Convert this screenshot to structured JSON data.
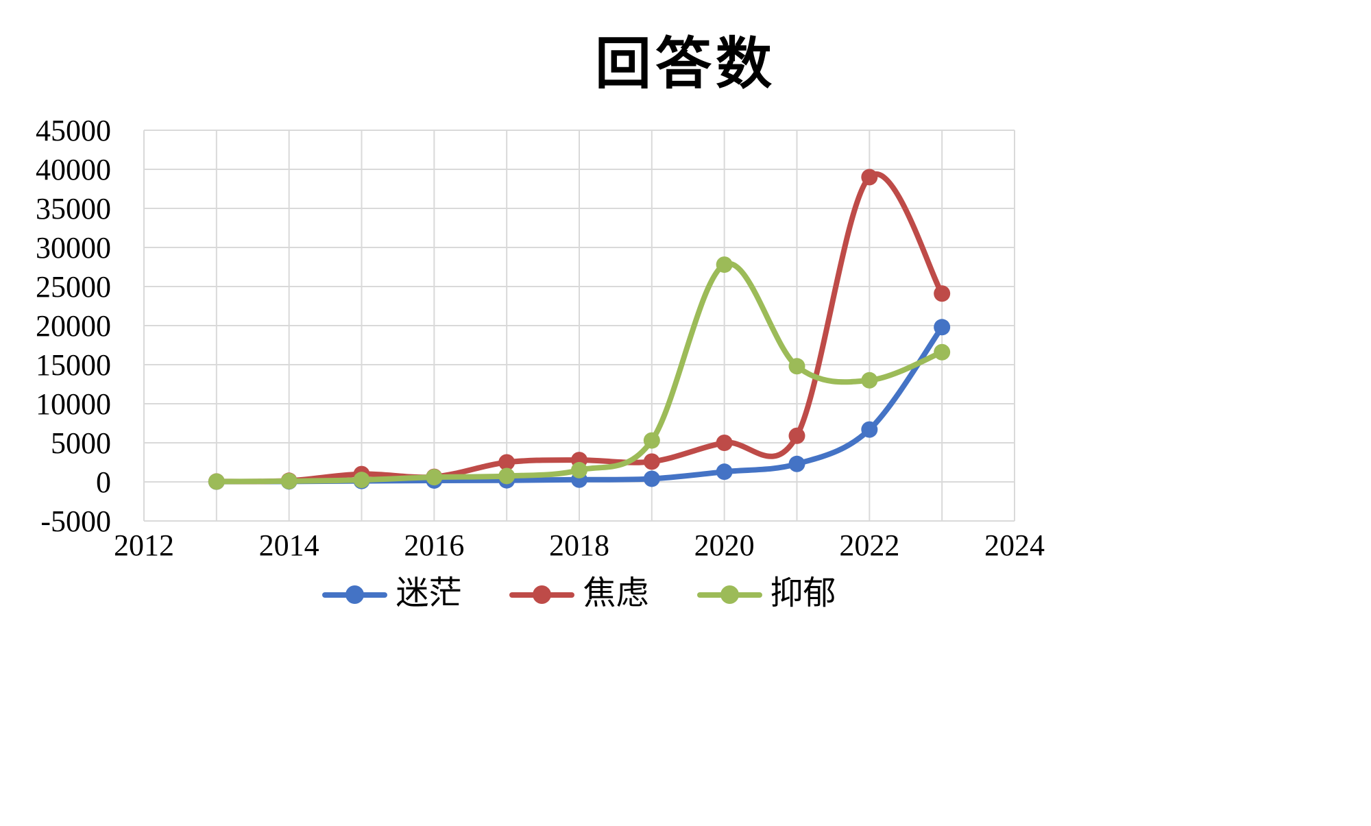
{
  "chart_data": {
    "type": "line",
    "title": "回答数",
    "xlabel": "",
    "ylabel": "",
    "x": [
      2013,
      2014,
      2015,
      2016,
      2017,
      2018,
      2019,
      2020,
      2021,
      2022,
      2023
    ],
    "xlim": [
      2012,
      2024
    ],
    "ylim": [
      -5000,
      45000
    ],
    "x_ticks": [
      2012,
      2014,
      2016,
      2018,
      2020,
      2022,
      2024
    ],
    "x_gridlines": [
      2012,
      2013,
      2014,
      2015,
      2016,
      2017,
      2018,
      2019,
      2020,
      2021,
      2022,
      2023,
      2024
    ],
    "y_ticks": [
      -5000,
      0,
      5000,
      10000,
      15000,
      20000,
      25000,
      30000,
      35000,
      40000,
      45000
    ],
    "grid": true,
    "legend_position": "bottom",
    "gridline_color": "#d9d9d9",
    "series": [
      {
        "name": "迷茫",
        "color": "#4473c5",
        "values": [
          30,
          60,
          120,
          180,
          200,
          280,
          400,
          1300,
          2300,
          6700,
          19800
        ]
      },
      {
        "name": "焦虑",
        "color": "#be4b48",
        "values": [
          50,
          150,
          1000,
          650,
          2500,
          2800,
          2600,
          5000,
          5900,
          39000,
          24100
        ]
      },
      {
        "name": "抑郁",
        "color": "#9cbb58",
        "values": [
          40,
          100,
          250,
          600,
          750,
          1500,
          5300,
          27800,
          14800,
          13000,
          16600
        ]
      }
    ]
  }
}
